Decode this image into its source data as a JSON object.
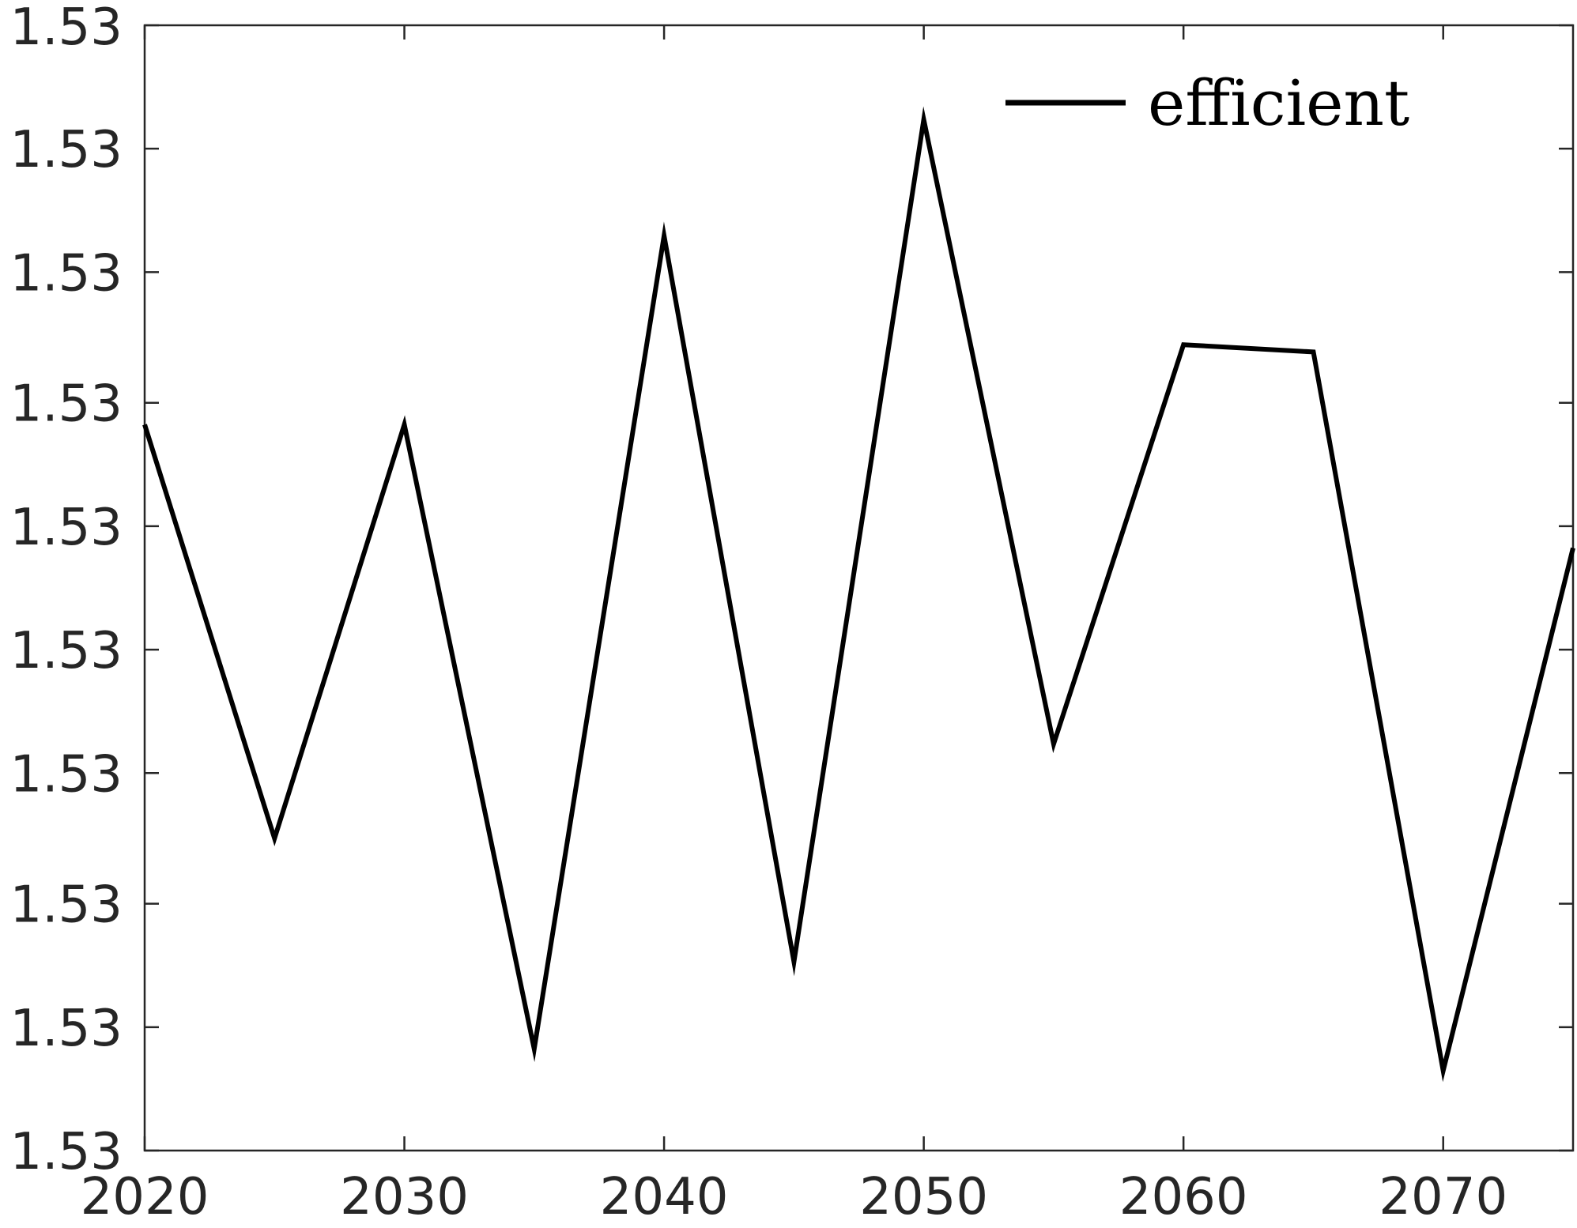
{
  "chart_data": {
    "type": "line",
    "title": "",
    "xlabel": "",
    "ylabel": "",
    "x": [
      2020,
      2025,
      2030,
      2035,
      2040,
      2045,
      2050,
      2055,
      2060,
      2065,
      2070,
      2075
    ],
    "series": [
      {
        "name": "efficient",
        "color": "#000000",
        "values": [
          1.5303,
          1.52973,
          1.5303,
          1.52944,
          1.53056,
          1.52956,
          1.53072,
          1.52986,
          1.53041,
          1.5304,
          1.52941,
          1.53013
        ]
      }
    ],
    "xlim": [
      2020,
      2075
    ],
    "ylim": [
      1.5293,
      1.53085
    ],
    "xticks": [
      2020,
      2030,
      2040,
      2050,
      2060,
      2070
    ],
    "xtick_labels": [
      "2020",
      "2030",
      "2040",
      "2050",
      "2060",
      "2070"
    ],
    "yticks": [
      1.5293,
      1.52947,
      1.52964,
      1.52982,
      1.52999,
      1.53016,
      1.53033,
      1.53051,
      1.53068,
      1.53085
    ],
    "ytick_labels": [
      "1.53",
      "1.53",
      "1.53",
      "1.53",
      "1.53",
      "1.53",
      "1.53",
      "1.53",
      "1.53",
      "1.53"
    ],
    "grid": false,
    "legend": {
      "position": "top-right",
      "entries": [
        "efficient"
      ]
    }
  }
}
